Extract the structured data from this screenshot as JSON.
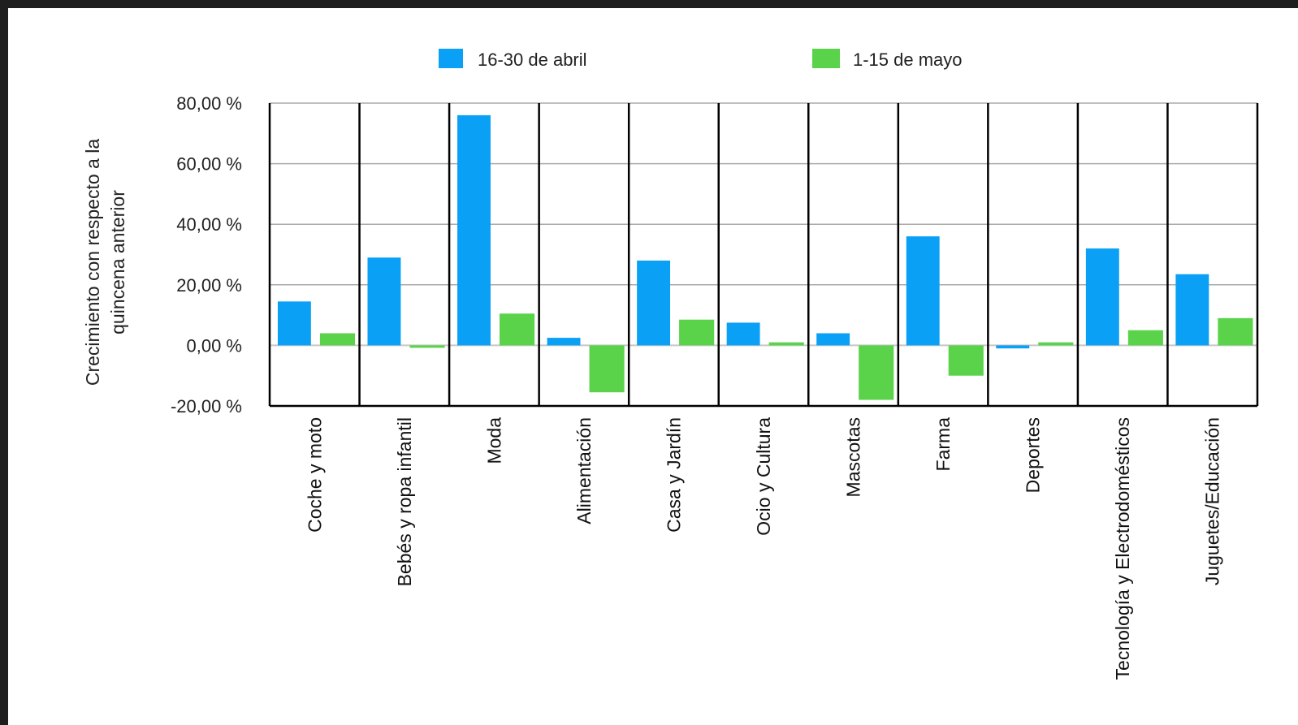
{
  "chart_data": {
    "type": "bar",
    "title": "",
    "xlabel": "",
    "ylabel": [
      "Crecimiento con respecto a la",
      "quincena anterior"
    ],
    "ylim": [
      -20,
      80
    ],
    "yticks": [
      -20,
      0,
      20,
      40,
      60,
      80
    ],
    "ytick_labels": [
      "-20,00 %",
      "0,00 %",
      "20,00 %",
      "40,00 %",
      "60,00 %",
      "80,00 %"
    ],
    "grid": true,
    "legend_position": "top",
    "categories": [
      "Coche y moto",
      "Bebés y ropa infantil",
      "Moda",
      "Alimentación",
      "Casa y Jardín",
      "Ocio y Cultura",
      "Mascotas",
      "Farma",
      "Deportes",
      "Tecnología y Electrodomésticos",
      "Juguetes/Educación"
    ],
    "series": [
      {
        "name": "16-30 de abril",
        "color": "#0aa0f5",
        "values": [
          14.5,
          29,
          76,
          2.5,
          28,
          7.5,
          4,
          36,
          -1,
          32,
          23.5
        ]
      },
      {
        "name": "1-15 de mayo",
        "color": "#5ad34a",
        "values": [
          4,
          -0.8,
          10.5,
          -15.5,
          8.5,
          1,
          -18,
          -10,
          1,
          5,
          9
        ]
      }
    ]
  }
}
